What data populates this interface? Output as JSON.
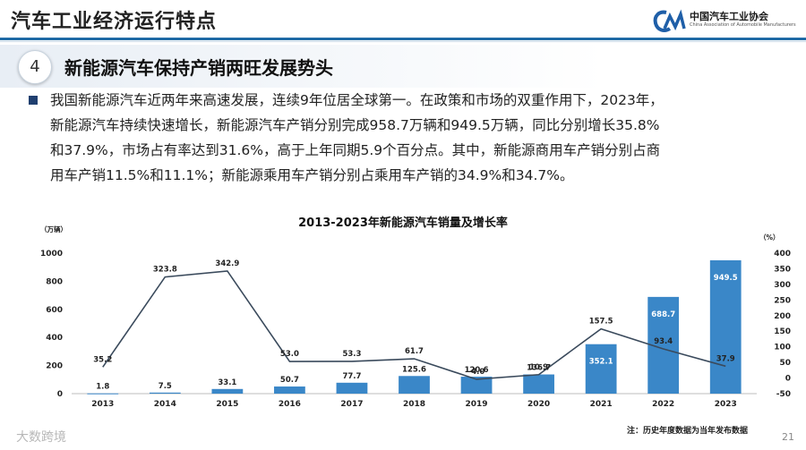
{
  "header": {
    "title": "汽车工业经济运行特点",
    "logo_cn": "中国汽车工业协会",
    "logo_en": "China Association of Automobile Manufacturers",
    "logo_mark": "CM"
  },
  "section": {
    "number": "4",
    "title": "新能源汽车保持产销两旺发展势头"
  },
  "paragraph": {
    "lines": [
      "我国新能源汽车近两年来高速发展，连续9年位居全球第一。在政策和市场的双重作用下，2023年，",
      "新能源汽车持续快速增长，新能源汽车产销分别完成958.7万辆和949.5万辆，同比分别增长35.8%",
      "和37.9%，市场占有率达到31.6%，高于上年同期5.9个百分点。其中，新能源商用车产销分别占商",
      "用车产销11.5%和11.1%；新能源乘用车产销分别占乘用车产销的34.9%和34.7%。"
    ]
  },
  "chart_data": {
    "type": "bar",
    "title": "2013-2023年新能源汽车销量及增长率",
    "categories": [
      "2013",
      "2014",
      "2015",
      "2016",
      "2017",
      "2018",
      "2019",
      "2020",
      "2021",
      "2022",
      "2023"
    ],
    "series": [
      {
        "type": "bar",
        "axis": "left",
        "values": [
          1.8,
          7.5,
          33.1,
          50.7,
          77.7,
          125.6,
          120.6,
          136.7,
          352.1,
          688.7,
          949.5
        ],
        "color": "#3a87c8"
      },
      {
        "type": "line",
        "axis": "right",
        "values": [
          35.2,
          323.8,
          342.9,
          53.0,
          53.3,
          61.7,
          -4.0,
          10.9,
          157.5,
          93.4,
          37.9
        ],
        "color": "#3a4a5c"
      }
    ],
    "y_left": {
      "unit": "（万辆）",
      "ticks": [
        0,
        200,
        400,
        600,
        800,
        1000
      ],
      "range": [
        0,
        1000
      ]
    },
    "y_right": {
      "unit": "（%）",
      "ticks": [
        -50,
        0,
        50,
        100,
        150,
        200,
        250,
        300,
        350,
        400
      ],
      "range": [
        -50,
        400
      ]
    },
    "footnote": "注：历史年度数据为当年发布数据",
    "grid": false,
    "legend": "none"
  },
  "footer": {
    "brand": "大数跨境",
    "page": "21"
  }
}
